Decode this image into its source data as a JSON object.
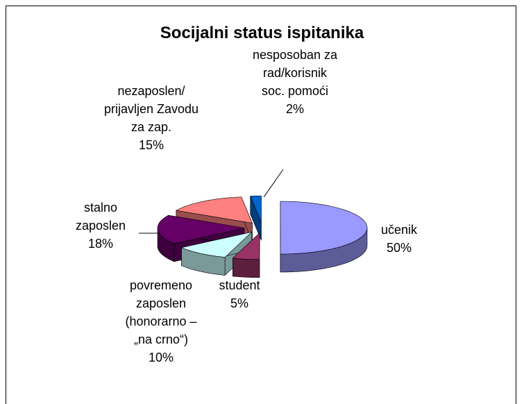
{
  "chart_data": {
    "type": "pie3d",
    "title": "Socijalni status ispitanika",
    "categories": [
      "učenik",
      "student",
      "povremeno zaposlen (honorarno – „na crno“)",
      "stalno zaposlen",
      "nezaposlen/ prijavljen Zavodu za zap.",
      "nesposoban za rad/korisnik soc. pomoći"
    ],
    "values": [
      50,
      5,
      10,
      18,
      15,
      2
    ],
    "value_labels": [
      "50%",
      "5%",
      "10%",
      "18%",
      "15%",
      "2%"
    ],
    "colors": [
      "#9999ff",
      "#993366",
      "#ccffff",
      "#660066",
      "#ff8080",
      "#0066cc"
    ]
  }
}
